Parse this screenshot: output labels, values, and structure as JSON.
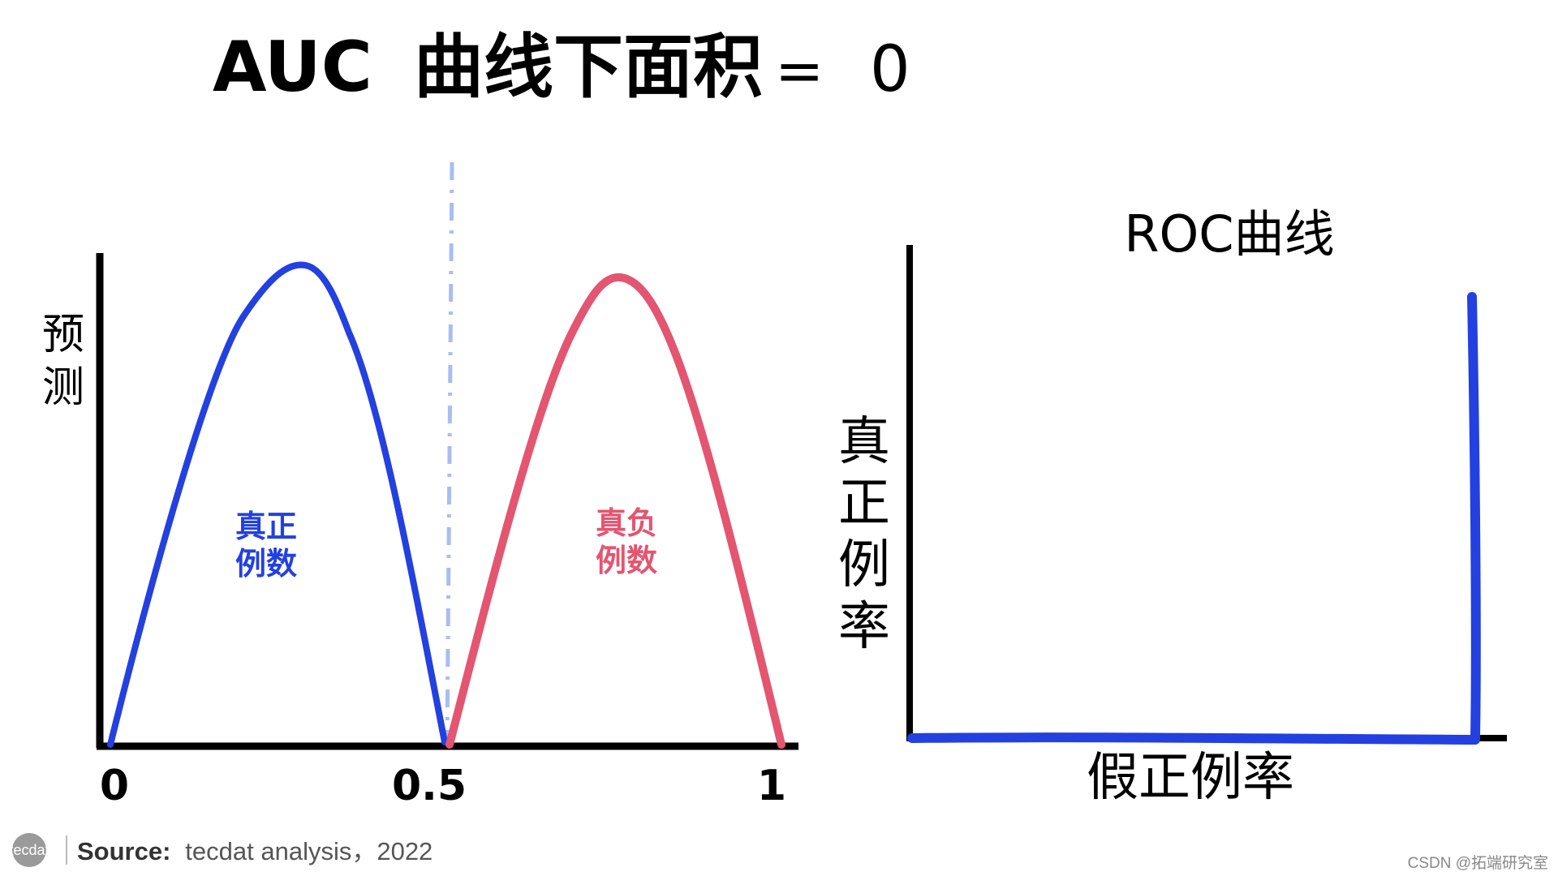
{
  "title": {
    "prefix": "AUC",
    "main": "曲线下面积",
    "equals": "=",
    "value": "0"
  },
  "left_plot": {
    "y_label_chars": [
      "预",
      "测"
    ],
    "ticks": [
      "0",
      "0.5",
      "1"
    ],
    "tp_label": [
      "真正",
      "例数"
    ],
    "tn_label": [
      "真负",
      "例数"
    ]
  },
  "roc_plot": {
    "title": "ROC曲线",
    "y_label_chars": [
      "真",
      "正",
      "例",
      "率"
    ],
    "x_label": "假正例率"
  },
  "source": {
    "logo": "tecdat",
    "bold": "Source:",
    "text": "tecdat analysis，2022"
  },
  "watermark": "CSDN @拓端研究室",
  "colors": {
    "positive": "#2340e0",
    "negative": "#e35570",
    "threshold": "#a9bdf2",
    "axis": "#000000"
  }
}
